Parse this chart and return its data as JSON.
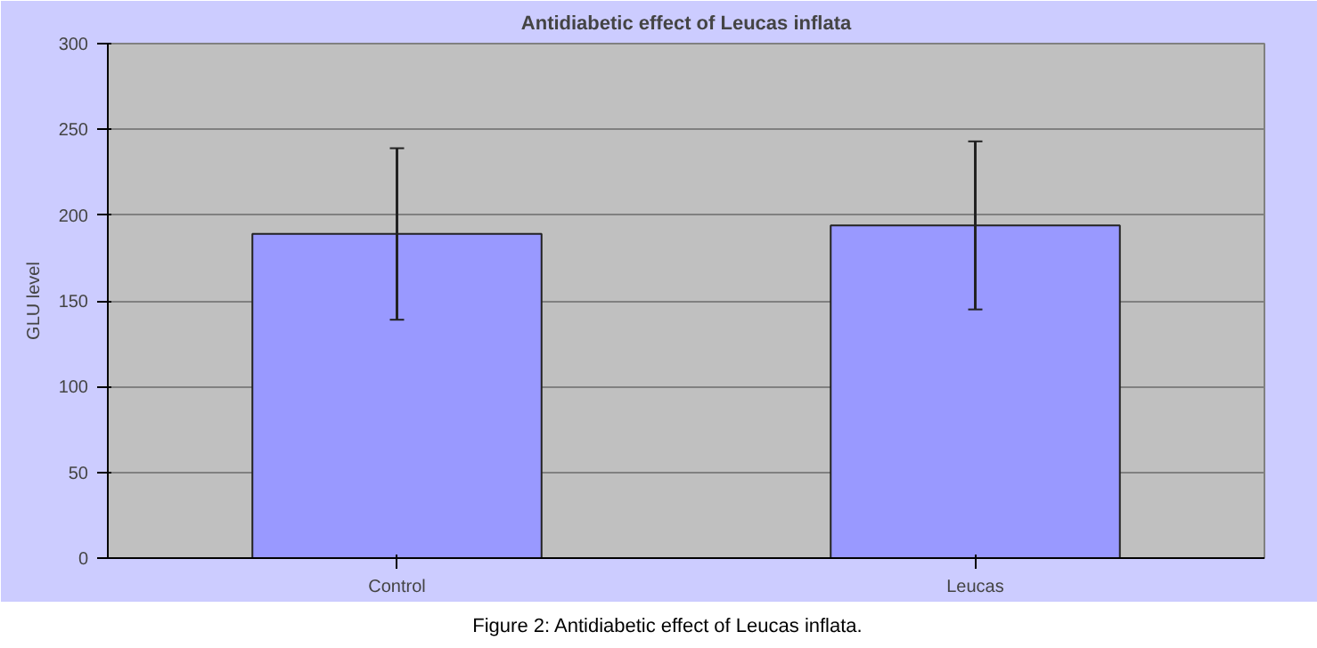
{
  "chart_data": {
    "type": "bar",
    "title": "Antidiabetic effect of Leucas inflata",
    "ylabel": "GLU level",
    "categories": [
      "Control",
      "Leucas"
    ],
    "values": [
      189,
      194
    ],
    "errors": [
      50,
      49
    ],
    "color": "#9999ff",
    "ylim": [
      0,
      300
    ],
    "yticks": [
      0,
      50,
      100,
      150,
      200,
      250,
      300
    ],
    "grid": "y",
    "annotations": [
      "Figure 2: Antidiabetic effect of Leucas inflata."
    ]
  }
}
